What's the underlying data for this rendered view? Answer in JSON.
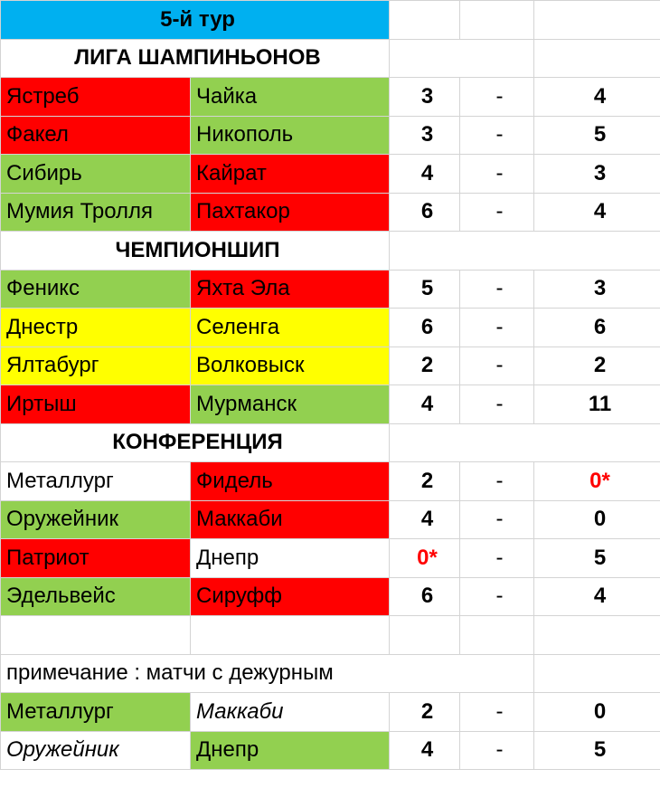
{
  "header": {
    "title": "5-й тур"
  },
  "sections": [
    {
      "title": "ЛИГА ШАМПИНЬОНОВ",
      "matches": [
        {
          "home": "Ястреб",
          "away": "Чайка",
          "hs": "3",
          "sep": "-",
          "as": "4",
          "home_color": "#ff0000",
          "away_color": "#92d050"
        },
        {
          "home": "Факел",
          "away": "Никополь",
          "hs": "3",
          "sep": "-",
          "as": "5",
          "home_color": "#ff0000",
          "away_color": "#92d050"
        },
        {
          "home": "Сибирь",
          "away": "Кайрат",
          "hs": "4",
          "sep": "-",
          "as": "3",
          "home_color": "#92d050",
          "away_color": "#ff0000"
        },
        {
          "home": "Мумия Тролля",
          "away": "Пахтакор",
          "hs": "6",
          "sep": "-",
          "as": "4",
          "home_color": "#92d050",
          "away_color": "#ff0000"
        }
      ]
    },
    {
      "title": "ЧЕМПИОНШИП",
      "matches": [
        {
          "home": "Феникс",
          "away": "Яхта Эла",
          "hs": "5",
          "sep": "-",
          "as": "3",
          "home_color": "#92d050",
          "away_color": "#ff0000"
        },
        {
          "home": "Днестр",
          "away": "Селенга",
          "hs": "6",
          "sep": "-",
          "as": "6",
          "home_color": "#ffff00",
          "away_color": "#ffff00"
        },
        {
          "home": "Ялтабург",
          "away": "Волковыск",
          "hs": "2",
          "sep": "-",
          "as": "2",
          "home_color": "#ffff00",
          "away_color": "#ffff00"
        },
        {
          "home": "Иртыш",
          "away": "Мурманск",
          "hs": "4",
          "sep": "-",
          "as": "11",
          "home_color": "#ff0000",
          "away_color": "#92d050"
        }
      ]
    },
    {
      "title": "КОНФЕРЕНЦИЯ",
      "matches": [
        {
          "home": "Металлург",
          "away": "Фидель",
          "hs": "2",
          "sep": "-",
          "as": "0*",
          "home_color": "#ffffff",
          "away_color": "#ff0000"
        },
        {
          "home": "Оружейник",
          "away": "Маккаби",
          "hs": "4",
          "sep": "-",
          "as": "0",
          "home_color": "#92d050",
          "away_color": "#ff0000"
        },
        {
          "home": "Патриот",
          "away": "Днепр",
          "hs": "0*",
          "sep": "-",
          "as": "5",
          "home_color": "#ff0000",
          "away_color": "#ffffff"
        },
        {
          "home": "Эдельвейс",
          "away": "Сируфф",
          "hs": "6",
          "sep": "-",
          "as": "4",
          "home_color": "#92d050",
          "away_color": "#ff0000"
        }
      ]
    }
  ],
  "note": {
    "text": "примечание : матчи с дежурным",
    "matches": [
      {
        "home": "Металлург",
        "away": "Маккаби",
        "hs": "2",
        "sep": "-",
        "as": "0"
      },
      {
        "home": "Оружейник",
        "away": "Днепр",
        "hs": "4",
        "sep": "-",
        "as": "5"
      }
    ]
  }
}
